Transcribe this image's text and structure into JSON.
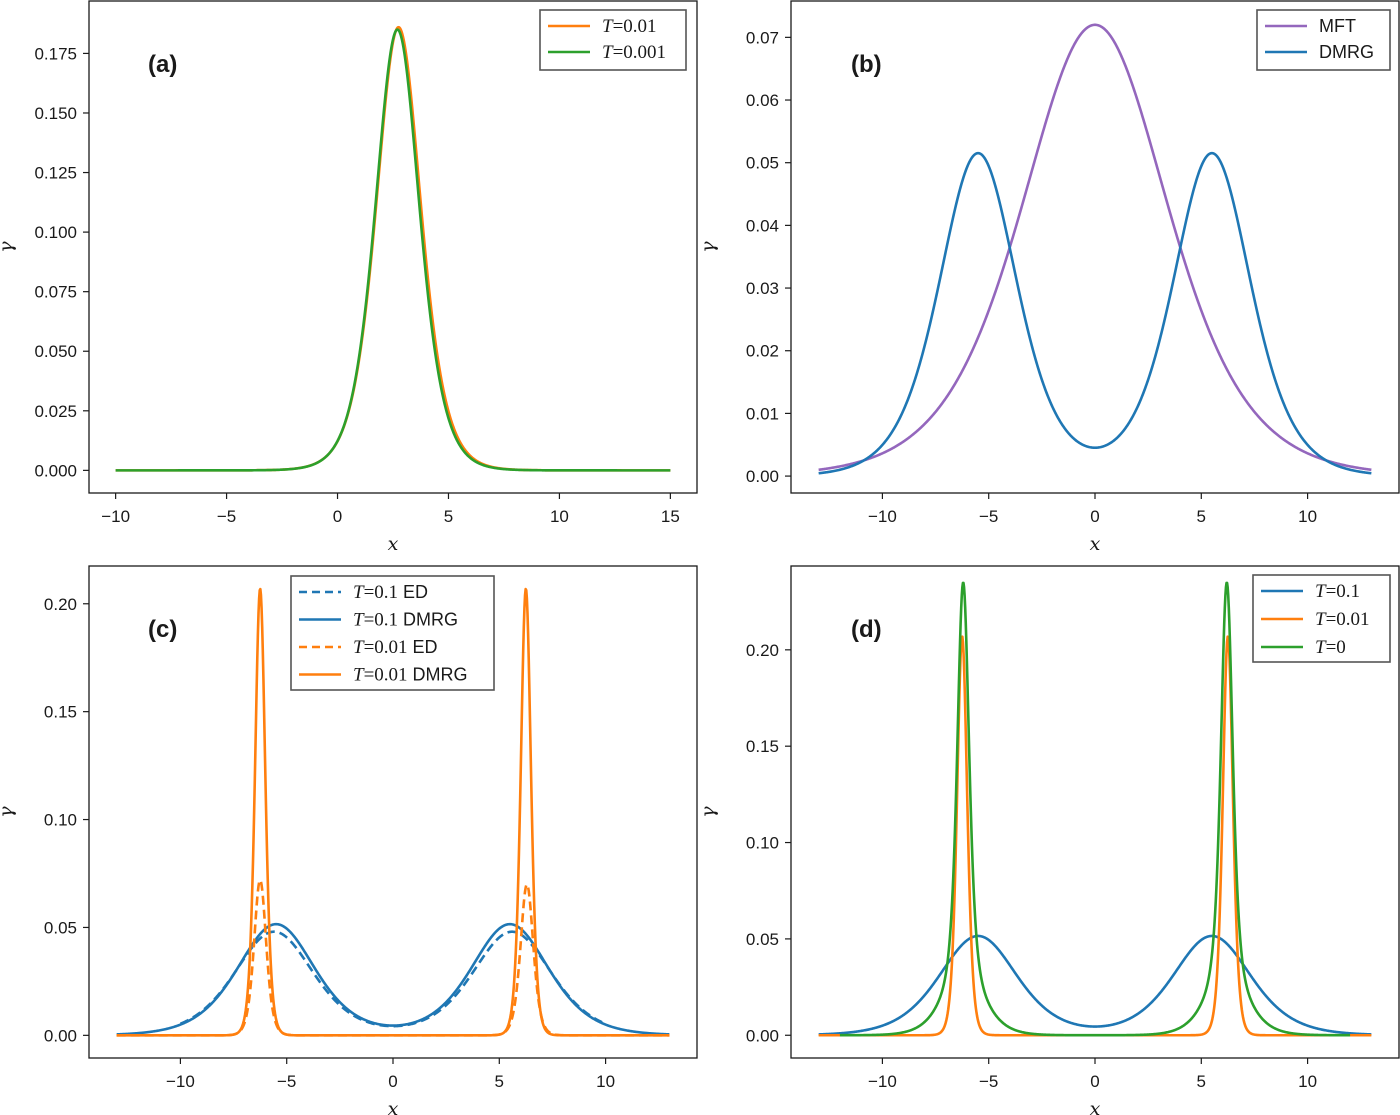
{
  "chart_data": [
    {
      "id": "a",
      "type": "line",
      "panel_label": "(a)",
      "title": "",
      "xlabel": "x",
      "ylabel": "γ",
      "xlim": [
        -11.2,
        16.2
      ],
      "ylim": [
        -0.0095,
        0.197
      ],
      "xticks": [
        -10,
        -5,
        0,
        5,
        10,
        15
      ],
      "xtick_labels": [
        "−10",
        "−5",
        "0",
        "5",
        "10",
        "15"
      ],
      "yticks": [
        0.0,
        0.025,
        0.05,
        0.075,
        0.1,
        0.125,
        0.15,
        0.175
      ],
      "ytick_labels": [
        "0.000",
        "0.025",
        "0.050",
        "0.075",
        "0.100",
        "0.125",
        "0.150",
        "0.175"
      ],
      "legend": {
        "position": "top-right",
        "entries": [
          {
            "label_math": "T",
            "label_rest": "= 0.01",
            "color": "#ff7f0e",
            "dash": "solid"
          },
          {
            "label_math": "T",
            "label_rest": "= 0.001",
            "color": "#2ca02c",
            "dash": "solid"
          }
        ]
      },
      "series": [
        {
          "name": "T=0.01",
          "color": "#ff7f0e",
          "dash": "solid",
          "x_range": [
            -10,
            15
          ],
          "model": {
            "kind": "sech2",
            "components": [
              {
                "center": 2.75,
                "amp": 0.186,
                "width": 1.35
              }
            ]
          },
          "key_points": [
            [
              -10,
              0.0
            ],
            [
              -2.5,
              0.005
            ],
            [
              0,
              0.022
            ],
            [
              2.75,
              0.186
            ],
            [
              5,
              0.03
            ],
            [
              7.5,
              0.005
            ],
            [
              15,
              0.0
            ]
          ]
        },
        {
          "name": "T=0.001",
          "color": "#2ca02c",
          "dash": "solid",
          "x_range": [
            -10,
            15
          ],
          "model": {
            "kind": "sech2",
            "components": [
              {
                "center": 2.7,
                "amp": 0.185,
                "width": 1.33
              }
            ]
          },
          "key_points": [
            [
              -10,
              0.0
            ],
            [
              -2.5,
              0.005
            ],
            [
              0,
              0.022
            ],
            [
              2.7,
              0.185
            ],
            [
              5,
              0.03
            ],
            [
              7.5,
              0.005
            ],
            [
              15,
              0.0
            ]
          ]
        }
      ]
    },
    {
      "id": "b",
      "type": "line",
      "panel_label": "(b)",
      "title": "",
      "xlabel": "x",
      "ylabel": "γ",
      "xlim": [
        -14.3,
        14.3
      ],
      "ylim": [
        -0.0027,
        0.0758
      ],
      "xticks": [
        -10,
        -5,
        0,
        5,
        10
      ],
      "xtick_labels": [
        "−10",
        "−5",
        "0",
        "5",
        "10"
      ],
      "yticks": [
        0.0,
        0.01,
        0.02,
        0.03,
        0.04,
        0.05,
        0.06,
        0.07
      ],
      "ytick_labels": [
        "0.00",
        "0.01",
        "0.02",
        "0.03",
        "0.04",
        "0.05",
        "0.06",
        "0.07"
      ],
      "legend": {
        "position": "top-right",
        "entries": [
          {
            "label_plain": "MFT",
            "color": "#9467bd",
            "dash": "solid"
          },
          {
            "label_plain": "DMRG",
            "color": "#1f77b4",
            "dash": "solid"
          }
        ]
      },
      "series": [
        {
          "name": "MFT",
          "color": "#9467bd",
          "dash": "solid",
          "x_range": [
            -13,
            13
          ],
          "model": {
            "kind": "sech2",
            "components": [
              {
                "center": 0,
                "amp": 0.072,
                "width": 4.6
              }
            ]
          },
          "key_points": [
            [
              -13,
              0.001
            ],
            [
              -10,
              0.0045
            ],
            [
              -5,
              0.032
            ],
            [
              0,
              0.072
            ],
            [
              5,
              0.032
            ],
            [
              10,
              0.0045
            ],
            [
              13,
              0.001
            ]
          ]
        },
        {
          "name": "DMRG",
          "color": "#1f77b4",
          "dash": "solid",
          "x_range": [
            -13,
            13
          ],
          "model": {
            "kind": "sech2",
            "components": [
              {
                "center": -5.5,
                "amp": 0.0515,
                "width": 2.45
              },
              {
                "center": 5.5,
                "amp": 0.0515,
                "width": 2.45
              }
            ]
          },
          "key_points": [
            [
              -13,
              0.0008
            ],
            [
              -10,
              0.005
            ],
            [
              -5.5,
              0.0528
            ],
            [
              0,
              0.0094
            ],
            [
              5.5,
              0.0528
            ],
            [
              10,
              0.005
            ],
            [
              13,
              0.0008
            ]
          ]
        }
      ]
    },
    {
      "id": "c",
      "type": "line",
      "panel_label": "(c)",
      "title": "",
      "xlabel": "x",
      "ylabel": "γ",
      "xlim": [
        -14.3,
        14.3
      ],
      "ylim": [
        -0.0105,
        0.2175
      ],
      "xticks": [
        -10,
        -5,
        0,
        5,
        10
      ],
      "xtick_labels": [
        "−10",
        "−5",
        "0",
        "5",
        "10"
      ],
      "yticks": [
        0.0,
        0.05,
        0.1,
        0.15,
        0.2
      ],
      "ytick_labels": [
        "0.00",
        "0.05",
        "0.10",
        "0.15",
        "0.20"
      ],
      "legend": {
        "position": "top-center",
        "entries": [
          {
            "label_math": "T",
            "label_rest": "= 0.1",
            "label_suffix": "ED",
            "color": "#1f77b4",
            "dash": "dashed"
          },
          {
            "label_math": "T",
            "label_rest": "= 0.1",
            "label_suffix": "DMRG",
            "color": "#1f77b4",
            "dash": "solid"
          },
          {
            "label_math": "T",
            "label_rest": "= 0.01",
            "label_suffix": "ED",
            "color": "#ff7f0e",
            "dash": "dashed"
          },
          {
            "label_math": "T",
            "label_rest": "= 0.01",
            "label_suffix": "DMRG",
            "color": "#ff7f0e",
            "dash": "solid"
          }
        ]
      },
      "series": [
        {
          "name": "T=0.1 ED",
          "color": "#1f77b4",
          "dash": "dashed",
          "x_range": [
            -10,
            10
          ],
          "model": {
            "kind": "sech2",
            "components": [
              {
                "center": -5.6,
                "amp": 0.048,
                "width": 2.5
              },
              {
                "center": 5.6,
                "amp": 0.048,
                "width": 2.5
              }
            ]
          },
          "key_points": [
            [
              -10,
              0.004
            ],
            [
              -5.5,
              0.049
            ],
            [
              0,
              0.0095
            ],
            [
              5.5,
              0.049
            ],
            [
              10,
              0.004
            ]
          ]
        },
        {
          "name": "T=0.1 DMRG",
          "color": "#1f77b4",
          "dash": "solid",
          "x_range": [
            -13,
            13
          ],
          "model": {
            "kind": "sech2",
            "components": [
              {
                "center": -5.5,
                "amp": 0.0515,
                "width": 2.45
              },
              {
                "center": 5.5,
                "amp": 0.0515,
                "width": 2.45
              }
            ]
          },
          "key_points": [
            [
              -13,
              0.0008
            ],
            [
              -5.5,
              0.0528
            ],
            [
              0,
              0.0094
            ],
            [
              5.5,
              0.0528
            ],
            [
              13,
              0.0008
            ]
          ]
        },
        {
          "name": "T=0.01 ED",
          "color": "#ff7f0e",
          "dash": "dashed",
          "x_range": [
            -13,
            13
          ],
          "model": {
            "kind": "sech2",
            "components": [
              {
                "center": -6.25,
                "amp": 0.072,
                "width": 0.38
              },
              {
                "center": 6.3,
                "amp": 0.07,
                "width": 0.4
              }
            ]
          },
          "key_points": [
            [
              -13,
              0.0
            ],
            [
              -6.25,
              0.072
            ],
            [
              0,
              0.0
            ],
            [
              6.3,
              0.07
            ],
            [
              13,
              0.0
            ]
          ]
        },
        {
          "name": "T=0.01 DMRG",
          "color": "#ff7f0e",
          "dash": "solid",
          "x_range": [
            -13,
            13
          ],
          "model": {
            "kind": "sech2",
            "components": [
              {
                "center": -6.25,
                "amp": 0.207,
                "width": 0.32
              },
              {
                "center": 6.25,
                "amp": 0.207,
                "width": 0.32
              }
            ]
          },
          "key_points": [
            [
              -13,
              0.0
            ],
            [
              -6.25,
              0.207
            ],
            [
              0,
              0.0
            ],
            [
              6.25,
              0.207
            ],
            [
              13,
              0.0
            ]
          ]
        }
      ]
    },
    {
      "id": "d",
      "type": "line",
      "panel_label": "(d)",
      "title": "",
      "xlabel": "x",
      "ylabel": "γ",
      "xlim": [
        -14.3,
        14.3
      ],
      "ylim": [
        -0.0118,
        0.2435
      ],
      "xticks": [
        -10,
        -5,
        0,
        5,
        10
      ],
      "xtick_labels": [
        "−10",
        "−5",
        "0",
        "5",
        "10"
      ],
      "yticks": [
        0.0,
        0.05,
        0.1,
        0.15,
        0.2
      ],
      "ytick_labels": [
        "0.00",
        "0.05",
        "0.10",
        "0.15",
        "0.20"
      ],
      "legend": {
        "position": "top-right",
        "entries": [
          {
            "label_math": "T",
            "label_rest": "= 0.1",
            "color": "#1f77b4",
            "dash": "solid"
          },
          {
            "label_math": "T",
            "label_rest": "= 0.01",
            "color": "#ff7f0e",
            "dash": "solid"
          },
          {
            "label_math": "T",
            "label_rest": "= 0",
            "color": "#2ca02c",
            "dash": "solid"
          }
        ]
      },
      "series": [
        {
          "name": "T=0.1",
          "color": "#1f77b4",
          "dash": "solid",
          "x_range": [
            -13,
            13
          ],
          "model": {
            "kind": "sech2",
            "components": [
              {
                "center": -5.5,
                "amp": 0.0515,
                "width": 2.45
              },
              {
                "center": 5.5,
                "amp": 0.0515,
                "width": 2.45
              }
            ]
          },
          "key_points": [
            [
              -13,
              0.0008
            ],
            [
              -5.5,
              0.0528
            ],
            [
              0,
              0.0094
            ],
            [
              5.5,
              0.0528
            ],
            [
              13,
              0.0008
            ]
          ]
        },
        {
          "name": "T=0.01",
          "color": "#ff7f0e",
          "dash": "solid",
          "x_range": [
            -13,
            13
          ],
          "model": {
            "kind": "sech2",
            "components": [
              {
                "center": -6.25,
                "amp": 0.207,
                "width": 0.32
              },
              {
                "center": 6.25,
                "amp": 0.207,
                "width": 0.32
              }
            ]
          },
          "key_points": [
            [
              -13,
              0.0
            ],
            [
              -6.25,
              0.207
            ],
            [
              0,
              0.0
            ],
            [
              6.25,
              0.207
            ],
            [
              13,
              0.0
            ]
          ]
        },
        {
          "name": "T=0",
          "color": "#2ca02c",
          "dash": "solid",
          "x_range": [
            -12,
            12
          ],
          "model": {
            "kind": "sech2",
            "components": [
              {
                "center": -6.2,
                "amp": 0.2,
                "width": 0.36
              },
              {
                "center": -6.2,
                "amp": 0.035,
                "width": 1.25
              },
              {
                "center": 6.2,
                "amp": 0.2,
                "width": 0.36
              },
              {
                "center": 6.2,
                "amp": 0.035,
                "width": 1.25
              }
            ]
          },
          "key_points": [
            [
              -12,
              0.0
            ],
            [
              -6.2,
              0.232
            ],
            [
              0,
              0.0
            ],
            [
              6.2,
              0.232
            ],
            [
              12,
              0.0
            ]
          ]
        }
      ]
    }
  ]
}
